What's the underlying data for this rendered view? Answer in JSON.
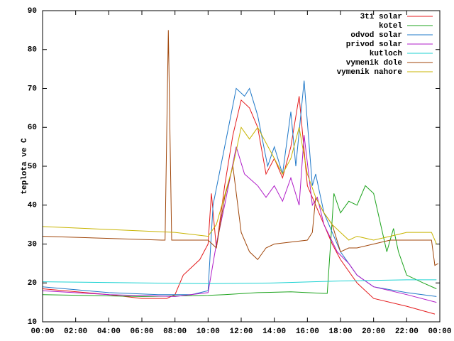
{
  "chart_data": {
    "type": "line",
    "y_label": "teplota ve C",
    "xlim": [
      0,
      24
    ],
    "ylim": [
      10,
      90
    ],
    "xticks": [
      {
        "value": 0,
        "label": "00:00"
      },
      {
        "value": 2,
        "label": "02:00"
      },
      {
        "value": 4,
        "label": "04:00"
      },
      {
        "value": 6,
        "label": "06:00"
      },
      {
        "value": 8,
        "label": "08:00"
      },
      {
        "value": 10,
        "label": "10:00"
      },
      {
        "value": 12,
        "label": "12:00"
      },
      {
        "value": 14,
        "label": "14:00"
      },
      {
        "value": 16,
        "label": "16:00"
      },
      {
        "value": 18,
        "label": "18:00"
      },
      {
        "value": 20,
        "label": "20:00"
      },
      {
        "value": 22,
        "label": "22:00"
      },
      {
        "value": 24,
        "label": "00:00"
      }
    ],
    "yticks": [
      10,
      20,
      30,
      40,
      50,
      60,
      70,
      80,
      90
    ],
    "legend": "top-right",
    "series": [
      {
        "name": "3ti solar",
        "color": "#e41a1c",
        "x": [
          0,
          4,
          6,
          7.5,
          8,
          8.5,
          9.5,
          10,
          10.2,
          10.5,
          11,
          11.5,
          12,
          12.5,
          13,
          13.5,
          14,
          14.5,
          15,
          15.5,
          16,
          16.5,
          17,
          17.5,
          18,
          19,
          20,
          22,
          23.7
        ],
        "values": [
          18.5,
          17,
          16,
          16,
          17,
          22,
          26,
          30,
          43,
          29,
          45,
          58,
          67,
          65,
          60,
          48,
          52,
          47,
          55,
          68,
          45,
          40,
          35,
          30,
          26,
          20,
          16,
          14,
          12
        ]
      },
      {
        "name": "kotel",
        "color": "#1ca31c",
        "x": [
          0,
          6,
          10,
          11,
          13,
          15,
          17,
          17.2,
          17.4,
          17.6,
          18,
          18.5,
          19,
          19.5,
          20,
          20.8,
          21.2,
          21.5,
          22,
          23,
          23.8
        ],
        "values": [
          17,
          16.5,
          16.8,
          17,
          17.5,
          17.7,
          17.3,
          17.3,
          30,
          43,
          38,
          41,
          40,
          45,
          43,
          28,
          34,
          28,
          22,
          20,
          18.5
        ]
      },
      {
        "name": "odvod solar",
        "color": "#1f78c8",
        "x": [
          0,
          4,
          7,
          9,
          10,
          10.3,
          11,
          11.7,
          12.2,
          12.5,
          13,
          13.6,
          14,
          14.5,
          15,
          15.3,
          15.8,
          16.3,
          16.5,
          17,
          17.5,
          18,
          19,
          20,
          22,
          23.8
        ],
        "values": [
          19,
          17.5,
          17,
          17,
          18,
          40,
          55,
          70,
          68,
          70,
          63,
          50,
          55,
          48,
          64,
          50,
          72,
          45,
          48,
          38,
          33,
          28,
          22,
          19,
          17.5,
          16.5
        ]
      },
      {
        "name": "privod solar",
        "color": "#b01cc8",
        "x": [
          0,
          4,
          8,
          10,
          10.5,
          11,
          11.7,
          12.2,
          13,
          13.5,
          14,
          14.5,
          15,
          15.5,
          15.8,
          16.3,
          16.6,
          17,
          17.8,
          18.5,
          19,
          20,
          22,
          23.8
        ],
        "values": [
          18,
          17,
          16.5,
          17.5,
          30,
          40,
          55,
          48,
          45,
          42,
          45,
          41,
          47,
          40,
          58,
          40,
          42,
          35,
          28,
          25,
          22,
          19,
          17,
          15
        ]
      },
      {
        "name": "kutloch",
        "color": "#1cd2d2",
        "x": [
          0,
          6,
          10,
          14,
          18,
          22,
          23.8
        ],
        "values": [
          20.3,
          20,
          19.8,
          20,
          20.5,
          20.8,
          20.8
        ]
      },
      {
        "name": "vymenik dole",
        "color": "#a0460a",
        "x": [
          0,
          7.2,
          7.4,
          7.6,
          7.8,
          10,
          10.5,
          11,
          11.5,
          12,
          12.5,
          13,
          13.5,
          14,
          15,
          16,
          16.3,
          16.5,
          17,
          17.5,
          18,
          18.5,
          19,
          20,
          21,
          23.5,
          23.7,
          23.9
        ],
        "values": [
          32,
          31,
          31,
          85,
          31,
          31,
          29,
          42,
          50,
          33,
          28,
          26,
          29,
          30,
          30.5,
          31,
          33,
          42,
          38,
          35,
          28,
          29,
          29,
          30,
          31,
          31,
          24.5,
          25
        ]
      },
      {
        "name": "vymenik nahore",
        "color": "#c8b400",
        "x": [
          0,
          8,
          10,
          10.5,
          11.5,
          12,
          12.5,
          13,
          14,
          14.5,
          15,
          15.5,
          16,
          16.5,
          17,
          17.5,
          18,
          18.5,
          19,
          20,
          21,
          22,
          23.5,
          23.8
        ],
        "values": [
          34.5,
          33,
          32,
          35,
          50,
          60,
          57,
          60,
          52,
          48,
          52,
          60,
          48,
          42,
          38,
          35,
          33,
          31,
          32,
          31,
          32,
          33,
          33,
          30
        ]
      }
    ]
  }
}
